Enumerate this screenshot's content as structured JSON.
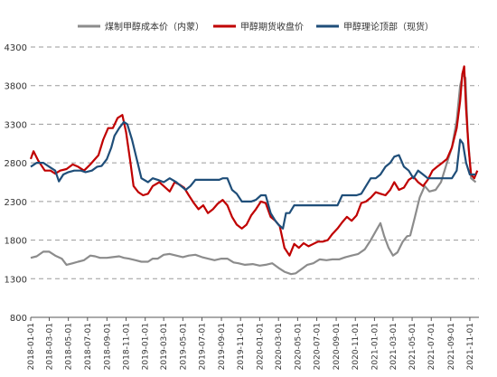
{
  "chart_data": {
    "type": "line",
    "ylim": [
      800,
      4300
    ],
    "yticks": [
      800,
      1300,
      1800,
      2300,
      2800,
      3300,
      3800,
      4300
    ],
    "grid": "horizontal-dashed",
    "legend_position": "top",
    "xticks": [
      "2018-01-01",
      "2018-03-01",
      "2018-05-01",
      "2018-07-01",
      "2018-09-01",
      "2018-11-01",
      "2019-01-01",
      "2019-03-01",
      "2019-05-01",
      "2019-07-01",
      "2019-09-01",
      "2019-11-01",
      "2020-01-01",
      "2020-03-01",
      "2020-05-01",
      "2020-07-01",
      "2020-09-01",
      "2020-11-01",
      "2021-01-01",
      "2021-03-01",
      "2021-05-01",
      "2021-07-01",
      "2021-09-01",
      "2021-11-01"
    ],
    "series": [
      {
        "name": "煤制甲醇成本价（内蒙）",
        "color": "#8c8c8c",
        "points": [
          [
            "2018-01-01",
            1570
          ],
          [
            "2018-01-20",
            1590
          ],
          [
            "2018-02-10",
            1650
          ],
          [
            "2018-03-01",
            1650
          ],
          [
            "2018-03-20",
            1600
          ],
          [
            "2018-04-10",
            1560
          ],
          [
            "2018-04-25",
            1480
          ],
          [
            "2018-05-15",
            1500
          ],
          [
            "2018-06-01",
            1520
          ],
          [
            "2018-06-20",
            1540
          ],
          [
            "2018-07-10",
            1600
          ],
          [
            "2018-07-25",
            1590
          ],
          [
            "2018-08-10",
            1570
          ],
          [
            "2018-09-01",
            1570
          ],
          [
            "2018-09-20",
            1580
          ],
          [
            "2018-10-10",
            1590
          ],
          [
            "2018-10-25",
            1570
          ],
          [
            "2018-11-10",
            1560
          ],
          [
            "2018-12-01",
            1540
          ],
          [
            "2018-12-20",
            1520
          ],
          [
            "2019-01-10",
            1520
          ],
          [
            "2019-01-25",
            1560
          ],
          [
            "2019-02-10",
            1560
          ],
          [
            "2019-03-01",
            1610
          ],
          [
            "2019-03-20",
            1620
          ],
          [
            "2019-04-10",
            1600
          ],
          [
            "2019-05-01",
            1580
          ],
          [
            "2019-05-20",
            1600
          ],
          [
            "2019-06-10",
            1610
          ],
          [
            "2019-07-01",
            1580
          ],
          [
            "2019-07-20",
            1560
          ],
          [
            "2019-08-10",
            1540
          ],
          [
            "2019-09-01",
            1560
          ],
          [
            "2019-09-20",
            1560
          ],
          [
            "2019-10-10",
            1510
          ],
          [
            "2019-10-25",
            1500
          ],
          [
            "2019-11-15",
            1480
          ],
          [
            "2019-12-10",
            1490
          ],
          [
            "2020-01-01",
            1470
          ],
          [
            "2020-01-20",
            1480
          ],
          [
            "2020-02-10",
            1500
          ],
          [
            "2020-03-01",
            1440
          ],
          [
            "2020-03-20",
            1390
          ],
          [
            "2020-04-10",
            1360
          ],
          [
            "2020-04-25",
            1370
          ],
          [
            "2020-05-15",
            1430
          ],
          [
            "2020-06-01",
            1480
          ],
          [
            "2020-06-20",
            1500
          ],
          [
            "2020-07-10",
            1550
          ],
          [
            "2020-08-01",
            1540
          ],
          [
            "2020-08-20",
            1550
          ],
          [
            "2020-09-10",
            1550
          ],
          [
            "2020-10-01",
            1580
          ],
          [
            "2020-10-20",
            1600
          ],
          [
            "2020-11-10",
            1620
          ],
          [
            "2020-12-01",
            1680
          ],
          [
            "2020-12-20",
            1800
          ],
          [
            "2021-01-10",
            1950
          ],
          [
            "2021-01-20",
            2020
          ],
          [
            "2021-02-01",
            1850
          ],
          [
            "2021-02-15",
            1700
          ],
          [
            "2021-03-01",
            1600
          ],
          [
            "2021-03-15",
            1640
          ],
          [
            "2021-04-01",
            1780
          ],
          [
            "2021-04-15",
            1850
          ],
          [
            "2021-04-25",
            1860
          ],
          [
            "2021-05-10",
            2100
          ],
          [
            "2021-05-25",
            2350
          ],
          [
            "2021-06-10",
            2500
          ],
          [
            "2021-06-25",
            2430
          ],
          [
            "2021-07-15",
            2450
          ],
          [
            "2021-08-01",
            2550
          ],
          [
            "2021-08-20",
            2800
          ],
          [
            "2021-09-05",
            3000
          ],
          [
            "2021-09-20",
            3350
          ],
          [
            "2021-10-01",
            3800
          ],
          [
            "2021-10-10",
            3950
          ],
          [
            "2021-10-18",
            3900
          ],
          [
            "2021-10-25",
            3200
          ],
          [
            "2021-11-05",
            2600
          ],
          [
            "2021-11-20",
            2550
          ]
        ]
      },
      {
        "name": "甲醇期货收盘价",
        "color": "#c00000",
        "points": [
          [
            "2018-01-01",
            2850
          ],
          [
            "2018-01-10",
            2950
          ],
          [
            "2018-01-25",
            2830
          ],
          [
            "2018-02-15",
            2700
          ],
          [
            "2018-03-05",
            2700
          ],
          [
            "2018-03-20",
            2660
          ],
          [
            "2018-04-05",
            2700
          ],
          [
            "2018-04-25",
            2720
          ],
          [
            "2018-05-15",
            2780
          ],
          [
            "2018-06-01",
            2750
          ],
          [
            "2018-06-20",
            2700
          ],
          [
            "2018-07-10",
            2780
          ],
          [
            "2018-07-25",
            2850
          ],
          [
            "2018-08-05",
            2900
          ],
          [
            "2018-08-20",
            3100
          ],
          [
            "2018-09-05",
            3250
          ],
          [
            "2018-09-20",
            3250
          ],
          [
            "2018-10-05",
            3380
          ],
          [
            "2018-10-20",
            3420
          ],
          [
            "2018-11-01",
            3200
          ],
          [
            "2018-11-15",
            2800
          ],
          [
            "2018-11-25",
            2500
          ],
          [
            "2018-12-10",
            2420
          ],
          [
            "2018-12-25",
            2380
          ],
          [
            "2019-01-10",
            2400
          ],
          [
            "2019-01-25",
            2500
          ],
          [
            "2019-02-15",
            2550
          ],
          [
            "2019-03-01",
            2500
          ],
          [
            "2019-03-20",
            2430
          ],
          [
            "2019-04-05",
            2550
          ],
          [
            "2019-04-20",
            2520
          ],
          [
            "2019-05-05",
            2480
          ],
          [
            "2019-05-20",
            2380
          ],
          [
            "2019-06-05",
            2280
          ],
          [
            "2019-06-20",
            2200
          ],
          [
            "2019-07-05",
            2250
          ],
          [
            "2019-07-20",
            2150
          ],
          [
            "2019-08-05",
            2200
          ],
          [
            "2019-08-20",
            2270
          ],
          [
            "2019-09-05",
            2320
          ],
          [
            "2019-09-20",
            2250
          ],
          [
            "2019-10-05",
            2100
          ],
          [
            "2019-10-20",
            2000
          ],
          [
            "2019-11-05",
            1950
          ],
          [
            "2019-11-20",
            2000
          ],
          [
            "2019-12-05",
            2120
          ],
          [
            "2019-12-20",
            2200
          ],
          [
            "2020-01-05",
            2300
          ],
          [
            "2020-01-20",
            2280
          ],
          [
            "2020-02-05",
            2100
          ],
          [
            "2020-02-20",
            2050
          ],
          [
            "2020-03-05",
            1980
          ],
          [
            "2020-03-20",
            1700
          ],
          [
            "2020-04-05",
            1600
          ],
          [
            "2020-04-20",
            1750
          ],
          [
            "2020-05-05",
            1700
          ],
          [
            "2020-05-20",
            1760
          ],
          [
            "2020-06-05",
            1720
          ],
          [
            "2020-06-20",
            1750
          ],
          [
            "2020-07-05",
            1780
          ],
          [
            "2020-07-20",
            1780
          ],
          [
            "2020-08-05",
            1800
          ],
          [
            "2020-08-20",
            1880
          ],
          [
            "2020-09-05",
            1950
          ],
          [
            "2020-09-20",
            2030
          ],
          [
            "2020-10-05",
            2100
          ],
          [
            "2020-10-20",
            2050
          ],
          [
            "2020-11-05",
            2120
          ],
          [
            "2020-11-20",
            2280
          ],
          [
            "2020-12-05",
            2300
          ],
          [
            "2020-12-20",
            2350
          ],
          [
            "2021-01-05",
            2420
          ],
          [
            "2021-01-20",
            2400
          ],
          [
            "2021-02-05",
            2380
          ],
          [
            "2021-02-20",
            2450
          ],
          [
            "2021-03-05",
            2550
          ],
          [
            "2021-03-20",
            2450
          ],
          [
            "2021-04-05",
            2480
          ],
          [
            "2021-04-20",
            2580
          ],
          [
            "2021-05-05",
            2620
          ],
          [
            "2021-05-20",
            2550
          ],
          [
            "2021-06-05",
            2500
          ],
          [
            "2021-06-20",
            2580
          ],
          [
            "2021-07-05",
            2700
          ],
          [
            "2021-07-20",
            2750
          ],
          [
            "2021-08-05",
            2800
          ],
          [
            "2021-08-20",
            2850
          ],
          [
            "2021-09-05",
            3000
          ],
          [
            "2021-09-20",
            3250
          ],
          [
            "2021-10-01",
            3600
          ],
          [
            "2021-10-08",
            3950
          ],
          [
            "2021-10-14",
            4050
          ],
          [
            "2021-10-20",
            3500
          ],
          [
            "2021-10-28",
            3000
          ],
          [
            "2021-11-05",
            2650
          ],
          [
            "2021-11-15",
            2600
          ],
          [
            "2021-11-25",
            2700
          ]
        ]
      },
      {
        "name": "甲醇理论顶部（现货）",
        "color": "#1f4e79",
        "points": [
          [
            "2018-01-01",
            2750
          ],
          [
            "2018-01-20",
            2800
          ],
          [
            "2018-02-10",
            2800
          ],
          [
            "2018-03-01",
            2750
          ],
          [
            "2018-03-20",
            2700
          ],
          [
            "2018-04-01",
            2560
          ],
          [
            "2018-04-15",
            2650
          ],
          [
            "2018-05-01",
            2680
          ],
          [
            "2018-05-20",
            2700
          ],
          [
            "2018-06-10",
            2700
          ],
          [
            "2018-06-25",
            2680
          ],
          [
            "2018-07-15",
            2700
          ],
          [
            "2018-08-01",
            2750
          ],
          [
            "2018-08-15",
            2760
          ],
          [
            "2018-09-01",
            2850
          ],
          [
            "2018-09-15",
            3000
          ],
          [
            "2018-09-25",
            3150
          ],
          [
            "2018-10-10",
            3250
          ],
          [
            "2018-10-25",
            3330
          ],
          [
            "2018-11-05",
            3300
          ],
          [
            "2018-11-20",
            3100
          ],
          [
            "2018-12-05",
            2850
          ],
          [
            "2018-12-20",
            2600
          ],
          [
            "2019-01-10",
            2550
          ],
          [
            "2019-01-25",
            2600
          ],
          [
            "2019-02-10",
            2580
          ],
          [
            "2019-03-01",
            2550
          ],
          [
            "2019-03-20",
            2600
          ],
          [
            "2019-04-10",
            2550
          ],
          [
            "2019-04-25",
            2500
          ],
          [
            "2019-05-10",
            2450
          ],
          [
            "2019-05-25",
            2500
          ],
          [
            "2019-06-10",
            2580
          ],
          [
            "2019-06-25",
            2580
          ],
          [
            "2019-07-10",
            2580
          ],
          [
            "2019-07-25",
            2580
          ],
          [
            "2019-08-10",
            2580
          ],
          [
            "2019-08-25",
            2580
          ],
          [
            "2019-09-05",
            2600
          ],
          [
            "2019-09-20",
            2600
          ],
          [
            "2019-10-05",
            2450
          ],
          [
            "2019-10-20",
            2400
          ],
          [
            "2019-11-05",
            2300
          ],
          [
            "2019-11-20",
            2300
          ],
          [
            "2019-12-05",
            2300
          ],
          [
            "2019-12-20",
            2320
          ],
          [
            "2020-01-05",
            2380
          ],
          [
            "2020-01-20",
            2380
          ],
          [
            "2020-02-05",
            2150
          ],
          [
            "2020-02-20",
            2050
          ],
          [
            "2020-03-01",
            2000
          ],
          [
            "2020-03-15",
            1950
          ],
          [
            "2020-03-25",
            2150
          ],
          [
            "2020-04-05",
            2150
          ],
          [
            "2020-04-20",
            2250
          ],
          [
            "2020-05-05",
            2250
          ],
          [
            "2020-05-20",
            2250
          ],
          [
            "2020-06-05",
            2250
          ],
          [
            "2020-06-20",
            2250
          ],
          [
            "2020-07-05",
            2250
          ],
          [
            "2020-07-20",
            2250
          ],
          [
            "2020-08-05",
            2250
          ],
          [
            "2020-08-20",
            2250
          ],
          [
            "2020-09-05",
            2250
          ],
          [
            "2020-09-20",
            2380
          ],
          [
            "2020-10-05",
            2380
          ],
          [
            "2020-10-20",
            2380
          ],
          [
            "2020-11-05",
            2380
          ],
          [
            "2020-11-20",
            2400
          ],
          [
            "2020-12-05",
            2500
          ],
          [
            "2020-12-20",
            2600
          ],
          [
            "2021-01-05",
            2600
          ],
          [
            "2021-01-20",
            2650
          ],
          [
            "2021-02-05",
            2750
          ],
          [
            "2021-02-20",
            2800
          ],
          [
            "2021-03-05",
            2880
          ],
          [
            "2021-03-20",
            2900
          ],
          [
            "2021-04-05",
            2750
          ],
          [
            "2021-04-20",
            2700
          ],
          [
            "2021-05-05",
            2600
          ],
          [
            "2021-05-20",
            2700
          ],
          [
            "2021-06-05",
            2650
          ],
          [
            "2021-06-20",
            2600
          ],
          [
            "2021-07-05",
            2600
          ],
          [
            "2021-07-20",
            2600
          ],
          [
            "2021-08-05",
            2600
          ],
          [
            "2021-08-20",
            2600
          ],
          [
            "2021-09-05",
            2600
          ],
          [
            "2021-09-20",
            2700
          ],
          [
            "2021-10-01",
            3100
          ],
          [
            "2021-10-10",
            3050
          ],
          [
            "2021-10-20",
            2800
          ],
          [
            "2021-11-01",
            2650
          ],
          [
            "2021-11-20",
            2650
          ]
        ]
      }
    ]
  }
}
